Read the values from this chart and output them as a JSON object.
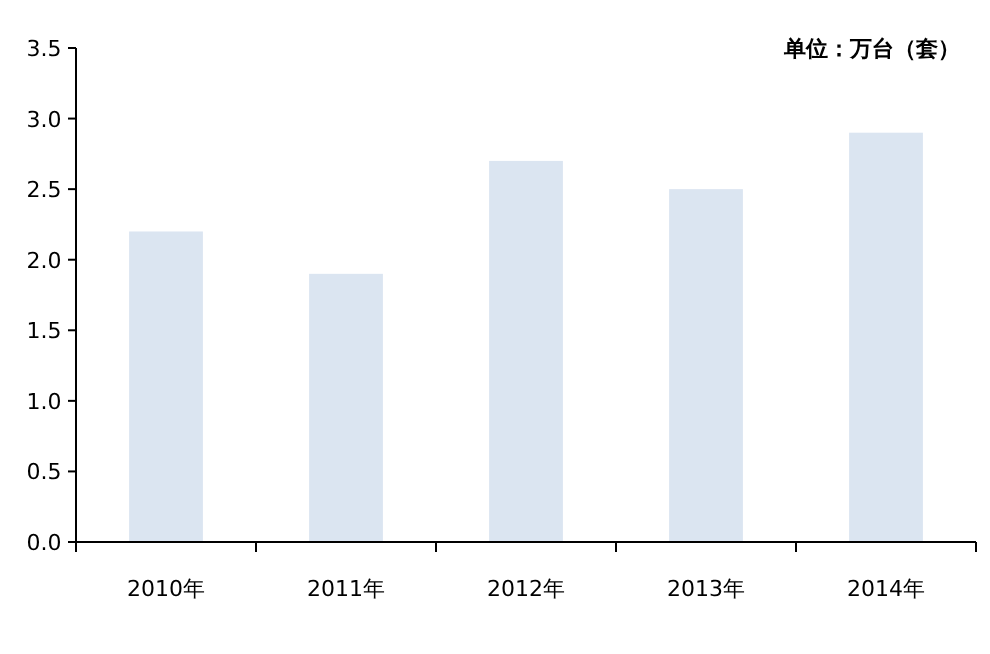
{
  "chart_data": {
    "type": "bar",
    "categories": [
      "2010年",
      "2011年",
      "2012年",
      "2013年",
      "2014年"
    ],
    "values": [
      2.2,
      1.9,
      2.7,
      2.5,
      2.9
    ],
    "color": "#dbe5f1",
    "ylim": [
      0,
      3.5
    ],
    "yticks": [
      {
        "value": 0,
        "label": "0.0"
      },
      {
        "value": 0.5,
        "label": "0.5"
      },
      {
        "value": 1,
        "label": "1.0"
      },
      {
        "value": 1.5,
        "label": "1.5"
      },
      {
        "value": 2,
        "label": "2.0"
      },
      {
        "value": 2.5,
        "label": "2.5"
      },
      {
        "value": 3,
        "label": "3.0"
      },
      {
        "value": 3.5,
        "label": "3.5"
      }
    ],
    "annotations": [
      "单位：万台（套）"
    ],
    "grid": false
  }
}
